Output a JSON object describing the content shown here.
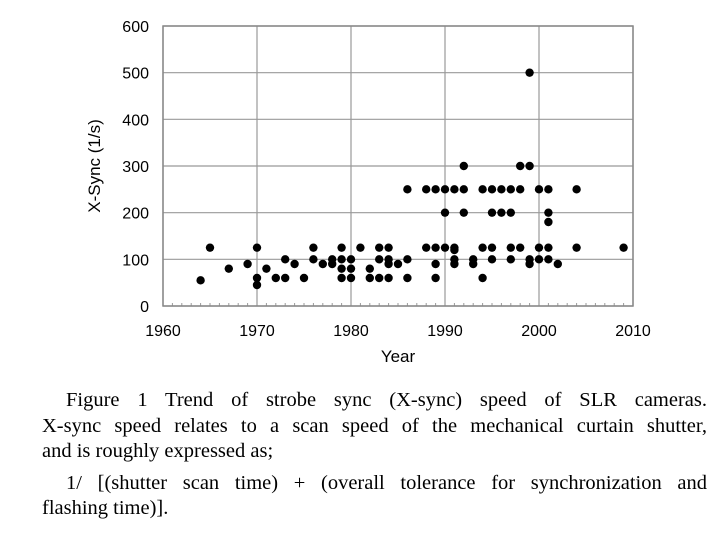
{
  "chart_data": {
    "type": "scatter",
    "title": "",
    "xlabel": "Year",
    "ylabel": "X-Sync (1/s)",
    "xlim": [
      1960,
      2010
    ],
    "ylim": [
      0,
      600
    ],
    "xticks": [
      "1960",
      "1970",
      "1980",
      "1990",
      "2000",
      "2010"
    ],
    "yticks": [
      "0",
      "100",
      "200",
      "300",
      "400",
      "500",
      "600"
    ],
    "grid": true,
    "legend": "none",
    "series": [
      {
        "name": "X-sync",
        "color": "#000000",
        "points": [
          [
            1964,
            55
          ],
          [
            1965,
            125
          ],
          [
            1967,
            80
          ],
          [
            1969,
            90
          ],
          [
            1970,
            125
          ],
          [
            1970,
            60
          ],
          [
            1970,
            45
          ],
          [
            1971,
            80
          ],
          [
            1972,
            60
          ],
          [
            1973,
            100
          ],
          [
            1973,
            60
          ],
          [
            1974,
            90
          ],
          [
            1975,
            60
          ],
          [
            1976,
            125
          ],
          [
            1976,
            100
          ],
          [
            1977,
            90
          ],
          [
            1978,
            100
          ],
          [
            1978,
            90
          ],
          [
            1979,
            125
          ],
          [
            1979,
            100
          ],
          [
            1979,
            80
          ],
          [
            1979,
            60
          ],
          [
            1980,
            100
          ],
          [
            1980,
            80
          ],
          [
            1980,
            60
          ],
          [
            1981,
            125
          ],
          [
            1982,
            80
          ],
          [
            1982,
            60
          ],
          [
            1983,
            125
          ],
          [
            1983,
            100
          ],
          [
            1983,
            60
          ],
          [
            1984,
            125
          ],
          [
            1984,
            100
          ],
          [
            1984,
            90
          ],
          [
            1984,
            60
          ],
          [
            1985,
            90
          ],
          [
            1986,
            250
          ],
          [
            1986,
            100
          ],
          [
            1986,
            60
          ],
          [
            1988,
            250
          ],
          [
            1988,
            125
          ],
          [
            1989,
            250
          ],
          [
            1989,
            125
          ],
          [
            1989,
            90
          ],
          [
            1989,
            60
          ],
          [
            1990,
            250
          ],
          [
            1990,
            200
          ],
          [
            1990,
            125
          ],
          [
            1991,
            250
          ],
          [
            1991,
            125
          ],
          [
            1991,
            120
          ],
          [
            1991,
            100
          ],
          [
            1991,
            90
          ],
          [
            1992,
            300
          ],
          [
            1992,
            250
          ],
          [
            1992,
            200
          ],
          [
            1993,
            100
          ],
          [
            1993,
            90
          ],
          [
            1994,
            250
          ],
          [
            1994,
            125
          ],
          [
            1994,
            60
          ],
          [
            1995,
            250
          ],
          [
            1995,
            200
          ],
          [
            1995,
            125
          ],
          [
            1995,
            100
          ],
          [
            1996,
            250
          ],
          [
            1996,
            200
          ],
          [
            1997,
            250
          ],
          [
            1997,
            200
          ],
          [
            1997,
            125
          ],
          [
            1997,
            100
          ],
          [
            1998,
            300
          ],
          [
            1998,
            250
          ],
          [
            1998,
            125
          ],
          [
            1999,
            500
          ],
          [
            1999,
            300
          ],
          [
            1999,
            100
          ],
          [
            1999,
            90
          ],
          [
            2000,
            250
          ],
          [
            2000,
            125
          ],
          [
            2000,
            100
          ],
          [
            2001,
            250
          ],
          [
            2001,
            200
          ],
          [
            2001,
            180
          ],
          [
            2001,
            125
          ],
          [
            2001,
            100
          ],
          [
            2002,
            90
          ],
          [
            2004,
            250
          ],
          [
            2004,
            125
          ],
          [
            2009,
            125
          ]
        ]
      }
    ]
  },
  "caption": {
    "lines": [
      "Figure 1   Trend of strobe sync (X-sync) speed of SLR cameras.",
      "X-sync speed relates to a scan speed of the mechanical curtain shutter,",
      "and is roughly expressed as;",
      "1/ [(shutter scan time) + (overall tolerance for synchronization and",
      "flashing time)]."
    ]
  }
}
